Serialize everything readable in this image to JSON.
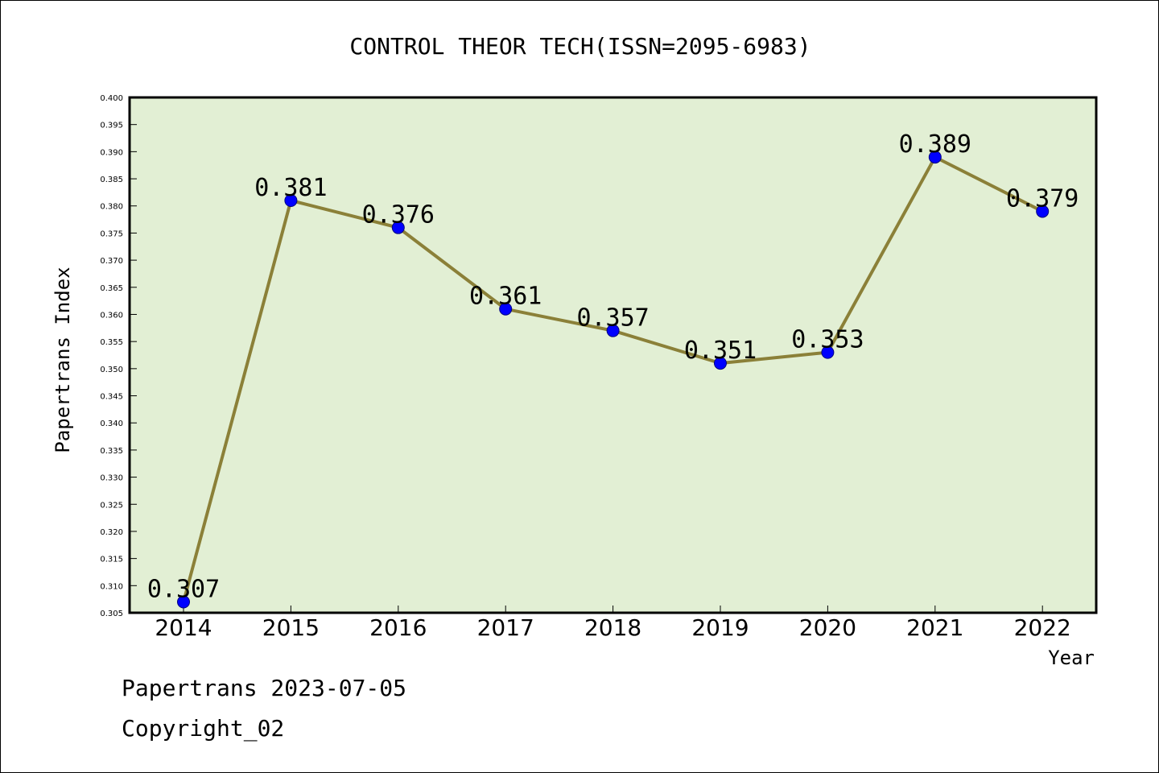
{
  "chart_data": {
    "type": "line",
    "title": "CONTROL THEOR TECH(ISSN=2095-6983)",
    "xlabel": "Year",
    "ylabel": "Papertrans Index",
    "categories": [
      "2014",
      "2015",
      "2016",
      "2017",
      "2018",
      "2019",
      "2020",
      "2021",
      "2022"
    ],
    "values": [
      0.307,
      0.381,
      0.376,
      0.361,
      0.357,
      0.351,
      0.353,
      0.389,
      0.379
    ],
    "data_labels": [
      "0.307",
      "0.381",
      "0.376",
      "0.361",
      "0.357",
      "0.351",
      "0.353",
      "0.389",
      "0.379"
    ],
    "ylim": [
      0.305,
      0.4
    ],
    "ytick_labels": [
      "0.305",
      "0.310",
      "0.315",
      "0.320",
      "0.325",
      "0.330",
      "0.335",
      "0.340",
      "0.345",
      "0.350",
      "0.355",
      "0.360",
      "0.365",
      "0.370",
      "0.375",
      "0.380",
      "0.385",
      "0.390",
      "0.395",
      "0.400"
    ],
    "grid": false,
    "colors": {
      "plot_background": "#e2efd4",
      "line": "#8b8038",
      "marker": "#0000ff"
    }
  },
  "footer": {
    "line1": "Papertrans 2023-07-05",
    "line2": "Copyright_02"
  }
}
